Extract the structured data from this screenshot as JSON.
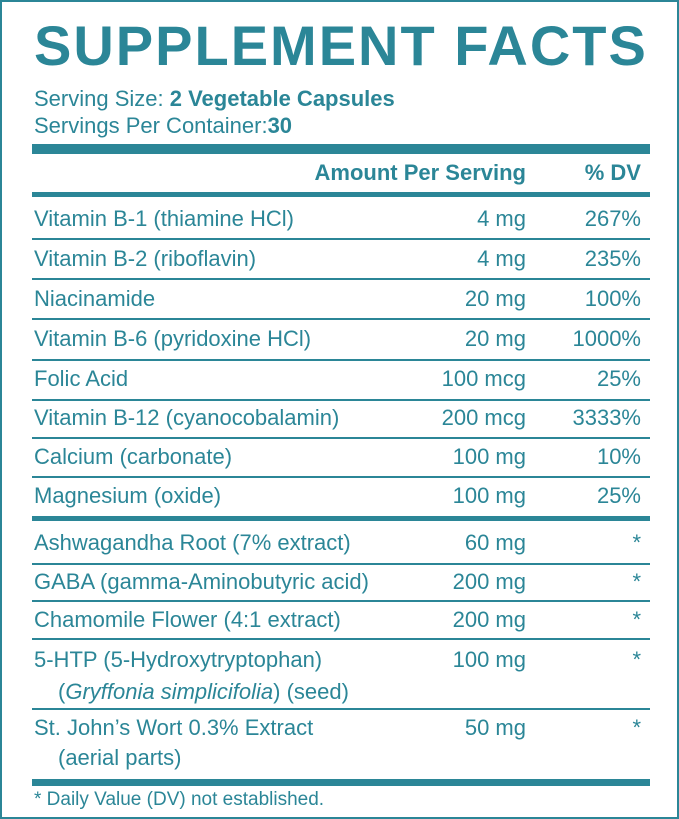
{
  "title": "SUPPLEMENT FACTS",
  "serving_size": {
    "label": "Serving Size:",
    "value": "2 Vegetable Capsules"
  },
  "servings_per_container": {
    "label": "Servings Per Container:",
    "value": "30"
  },
  "table_header": {
    "amount": "Amount Per Serving",
    "dv": "% DV"
  },
  "vitamins": [
    {
      "name": "Vitamin B-1 (thiamine HCl)",
      "amount": "4 mg",
      "dv": "267%"
    },
    {
      "name": "Vitamin B-2 (riboflavin)",
      "amount": "4 mg",
      "dv": "235%"
    },
    {
      "name": "Niacinamide",
      "amount": "20 mg",
      "dv": "100%"
    },
    {
      "name": "Vitamin B-6 (pyridoxine HCl)",
      "amount": "20 mg",
      "dv": "1000%"
    },
    {
      "name": "Folic Acid",
      "amount": "100 mcg",
      "dv": "25%"
    },
    {
      "name": "Vitamin B-12 (cyanocobalamin)",
      "amount": "200 mcg",
      "dv": "3333%"
    },
    {
      "name": "Calcium (carbonate)",
      "amount": "100 mg",
      "dv": "10%"
    },
    {
      "name": "Magnesium (oxide)",
      "amount": "100 mg",
      "dv": "25%"
    }
  ],
  "others": [
    {
      "name": "Ashwagandha Root (7% extract)",
      "amount": "60 mg",
      "dv": "*"
    },
    {
      "name": "GABA (gamma-Aminobutyric acid)",
      "amount": "200 mg",
      "dv": "*"
    },
    {
      "name": "Chamomile Flower (4:1 extract)",
      "amount": "200 mg",
      "dv": "*"
    },
    {
      "name": "5-HTP (5-Hydroxytryptophan)",
      "sub_open": "(",
      "sub_italic": "Gryffonia simplicifolia",
      "sub_close": ") (seed)",
      "amount": "100 mg",
      "dv": "*"
    },
    {
      "name": "St. John’s Wort 0.3% Extract",
      "sub_plain": "(aerial parts)",
      "amount": "50 mg",
      "dv": "*"
    }
  ],
  "footnote": "* Daily Value (DV) not established.",
  "colors": {
    "accent": "#2b8697",
    "background": "#ffffff"
  }
}
